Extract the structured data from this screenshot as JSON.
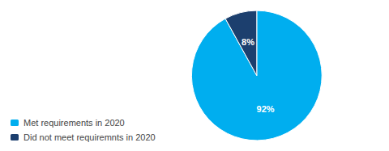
{
  "chart_data": {
    "type": "pie",
    "categories": [
      "Met requirements in 2020",
      "Did not meet requiremnts in 2020"
    ],
    "values": [
      92,
      8
    ],
    "value_labels": [
      "92%",
      "8%"
    ],
    "colors": [
      "#00AEEF",
      "#1C3F6E"
    ],
    "data_labels": true,
    "legend": "lower left"
  }
}
